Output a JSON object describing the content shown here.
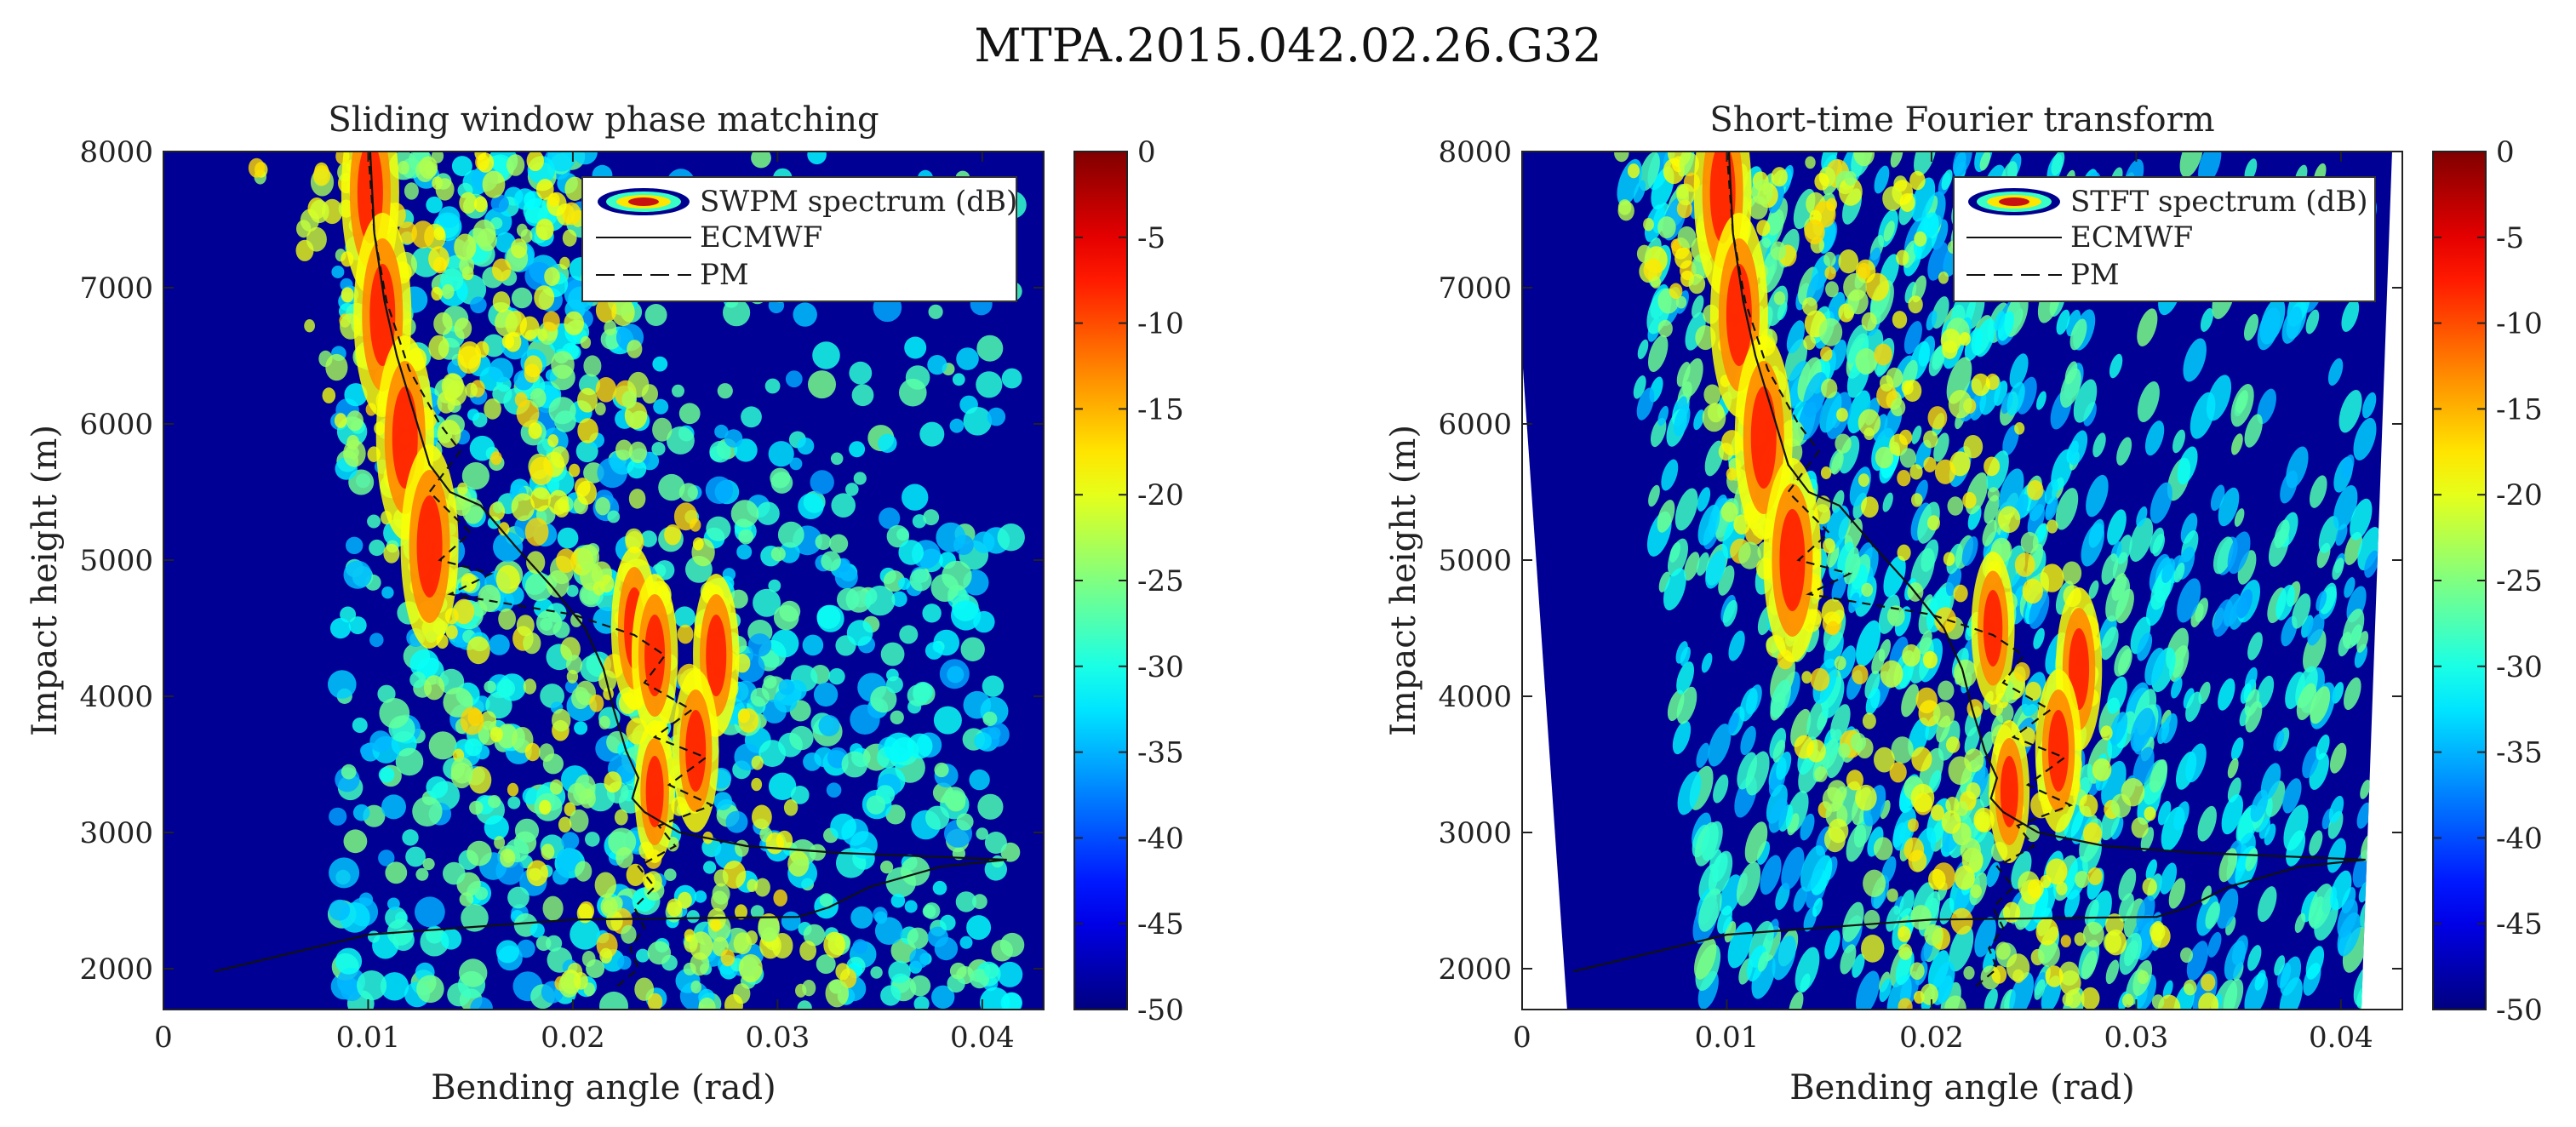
{
  "page": {
    "title": "MTPA.2015.042.02.26.G32"
  },
  "chart_data": [
    {
      "type": "heatmap",
      "id": "swpm",
      "title": "Sliding window phase matching",
      "xlabel": "Bending angle (rad)",
      "ylabel": "Impact height (m)",
      "xlim": [
        0,
        0.043
      ],
      "ylim": [
        1700,
        8000
      ],
      "xticks": [
        0,
        0.01,
        0.02,
        0.03,
        0.04
      ],
      "xtick_labels": [
        "0",
        "0.01",
        "0.02",
        "0.03",
        "0.04"
      ],
      "yticks": [
        2000,
        3000,
        4000,
        5000,
        6000,
        7000,
        8000
      ],
      "ytick_labels": [
        "2000",
        "3000",
        "4000",
        "5000",
        "6000",
        "7000",
        "8000"
      ],
      "colorbar": {
        "min": -50,
        "max": 0,
        "ticks": [
          0,
          -5,
          -10,
          -15,
          -20,
          -25,
          -30,
          -35,
          -40,
          -45,
          -50
        ],
        "tick_labels": [
          "0",
          "-5",
          "-10",
          "-15",
          "-20",
          "-25",
          "-30",
          "-35",
          "-40",
          "-45",
          "-50"
        ],
        "colormap": "jet"
      },
      "legend": {
        "placement": "top-right",
        "entries": [
          "SWPM spectrum (dB)",
          "ECMWF",
          "PM"
        ]
      },
      "series": [
        {
          "name": "ECMWF",
          "style": "solid",
          "x": [
            0.0101,
            0.0103,
            0.0108,
            0.0114,
            0.0122,
            0.013,
            0.014,
            0.0155,
            0.0172,
            0.019,
            0.0206,
            0.0215,
            0.022,
            0.0226,
            0.0232,
            0.0229,
            0.0235,
            0.0252,
            0.0285,
            0.033,
            0.038,
            0.0412,
            0.038,
            0.0345,
            0.0325,
            0.031,
            0.02,
            0.01,
            0.0025
          ],
          "y": [
            8000,
            7400,
            6900,
            6500,
            6100,
            5700,
            5500,
            5400,
            5100,
            4800,
            4500,
            4200,
            3900,
            3600,
            3400,
            3250,
            3150,
            3000,
            2900,
            2850,
            2820,
            2800,
            2750,
            2600,
            2450,
            2380,
            2360,
            2250,
            1980
          ]
        },
        {
          "name": "PM",
          "style": "dashed",
          "x": [
            0.01,
            0.0103,
            0.0109,
            0.012,
            0.0135,
            0.0145,
            0.013,
            0.015,
            0.0135,
            0.016,
            0.014,
            0.02,
            0.023,
            0.0245,
            0.0235,
            0.0258,
            0.024,
            0.0265,
            0.0247,
            0.0268,
            0.0242,
            0.025,
            0.0232,
            0.024,
            0.023,
            0.0235,
            0.0228,
            0.0232,
            0.022
          ],
          "y": [
            8000,
            7400,
            6900,
            6400,
            6000,
            5800,
            5500,
            5200,
            5000,
            4900,
            4750,
            4600,
            4450,
            4300,
            4100,
            3900,
            3700,
            3550,
            3350,
            3200,
            3050,
            2900,
            2750,
            2600,
            2450,
            2300,
            2150,
            2000,
            1850
          ]
        }
      ],
      "ridges": [
        {
          "x": [
            0.0101,
            0.0107,
            0.0118,
            0.013
          ],
          "y": [
            7700,
            6800,
            5900,
            5100
          ],
          "strength": 1.0
        },
        {
          "x": [
            0.023,
            0.024
          ],
          "y": [
            4500,
            4300
          ],
          "strength": 0.8
        },
        {
          "x": [
            0.027,
            0.026
          ],
          "y": [
            4300,
            3600
          ],
          "strength": 0.8
        },
        {
          "x": [
            0.024
          ],
          "y": [
            3300
          ],
          "strength": 0.7
        }
      ]
    },
    {
      "type": "heatmap",
      "id": "stft",
      "title": "Short-time Fourier transform",
      "xlabel": "Bending angle (rad)",
      "ylabel": "Impact height (m)",
      "xlim": [
        0,
        0.043
      ],
      "ylim": [
        1700,
        8000
      ],
      "xticks": [
        0,
        0.01,
        0.02,
        0.03,
        0.04
      ],
      "xtick_labels": [
        "0",
        "0.01",
        "0.02",
        "0.03",
        "0.04"
      ],
      "yticks": [
        2000,
        3000,
        4000,
        5000,
        6000,
        7000,
        8000
      ],
      "ytick_labels": [
        "2000",
        "3000",
        "4000",
        "5000",
        "6000",
        "7000",
        "8000"
      ],
      "colorbar": {
        "min": -50,
        "max": 0,
        "ticks": [
          0,
          -5,
          -10,
          -15,
          -20,
          -25,
          -30,
          -35,
          -40,
          -45,
          -50
        ],
        "tick_labels": [
          "0",
          "-5",
          "-10",
          "-15",
          "-20",
          "-25",
          "-30",
          "-35",
          "-40",
          "-45",
          "-50"
        ],
        "colormap": "jet"
      },
      "legend": {
        "placement": "top-right",
        "entries": [
          "STFT spectrum (dB)",
          "ECMWF",
          "PM"
        ]
      },
      "series": [
        {
          "name": "ECMWF",
          "style": "solid",
          "x": [
            0.0101,
            0.0103,
            0.0108,
            0.0114,
            0.0122,
            0.013,
            0.014,
            0.0155,
            0.0172,
            0.019,
            0.0206,
            0.0215,
            0.022,
            0.0226,
            0.0232,
            0.0229,
            0.0235,
            0.0252,
            0.0285,
            0.033,
            0.038,
            0.0412,
            0.038,
            0.0345,
            0.0325,
            0.031,
            0.02,
            0.01,
            0.0025
          ],
          "y": [
            8000,
            7400,
            6900,
            6500,
            6100,
            5700,
            5500,
            5400,
            5100,
            4800,
            4500,
            4200,
            3900,
            3600,
            3400,
            3250,
            3150,
            3000,
            2900,
            2850,
            2820,
            2800,
            2750,
            2600,
            2450,
            2380,
            2360,
            2250,
            1980
          ]
        },
        {
          "name": "PM",
          "style": "dashed",
          "x": [
            0.01,
            0.0103,
            0.0109,
            0.012,
            0.0135,
            0.0145,
            0.013,
            0.015,
            0.0135,
            0.016,
            0.014,
            0.02,
            0.023,
            0.0245,
            0.0235,
            0.0258,
            0.024,
            0.0265,
            0.0247,
            0.0268,
            0.0242,
            0.025,
            0.0232,
            0.024,
            0.023,
            0.0235,
            0.0228,
            0.0232,
            0.022
          ],
          "y": [
            8000,
            7400,
            6900,
            6400,
            6000,
            5800,
            5500,
            5200,
            5000,
            4900,
            4750,
            4600,
            4450,
            4300,
            4100,
            3900,
            3700,
            3550,
            3350,
            3200,
            3050,
            2900,
            2750,
            2600,
            2450,
            2300,
            2150,
            2000,
            1850
          ]
        }
      ],
      "ridges": [
        {
          "x": [
            0.0098,
            0.0106,
            0.0118,
            0.0132
          ],
          "y": [
            7700,
            6800,
            5900,
            5000
          ],
          "strength": 1.0
        },
        {
          "x": [
            0.023
          ],
          "y": [
            4500
          ],
          "strength": 0.75
        },
        {
          "x": [
            0.0272,
            0.0262
          ],
          "y": [
            4200,
            3600
          ],
          "strength": 0.8
        },
        {
          "x": [
            0.0238
          ],
          "y": [
            3300
          ],
          "strength": 0.7
        }
      ]
    }
  ]
}
